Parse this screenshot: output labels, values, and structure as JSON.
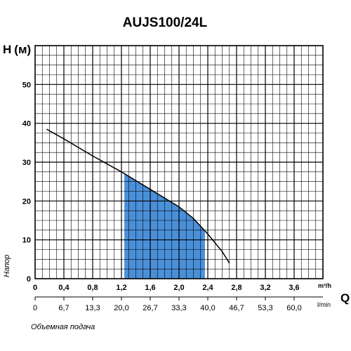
{
  "chart_data": {
    "type": "line",
    "title": "AUJS100/24L",
    "ylabel_symbol": "H",
    "ylabel_unit": "(м)",
    "ylabel": "Напор",
    "xlabel_symbol": "Q",
    "xlabel": "Объемная подача",
    "x_unit_primary": "m³/h",
    "x_unit_secondary": "l/min",
    "xlim": [
      0,
      4.0
    ],
    "ylim": [
      0,
      60
    ],
    "x_ticks": [
      "0",
      "0,4",
      "0,8",
      "1,2",
      "1,6",
      "2,0",
      "2,4",
      "2,8",
      "3,2",
      "3,6"
    ],
    "x_ticks_lmin": [
      "0",
      "6,7",
      "13,3",
      "20,0",
      "26,7",
      "33,3",
      "40,0",
      "46,7",
      "53,3",
      "60,0"
    ],
    "y_ticks": [
      "0",
      "10",
      "20",
      "30",
      "40",
      "50"
    ],
    "grid": true,
    "series": [
      {
        "x": [
          0.16,
          0.4,
          0.8,
          1.2,
          1.6,
          2.0,
          2.2,
          2.4,
          2.6,
          2.7
        ],
        "y": [
          38.5,
          36.0,
          31.6,
          27.5,
          23.0,
          18.5,
          15.5,
          11.5,
          7.0,
          4.0
        ],
        "color": "#000000"
      }
    ],
    "working_range": {
      "x_from": 1.24,
      "x_to": 2.36,
      "color": "#4a90d9"
    }
  }
}
